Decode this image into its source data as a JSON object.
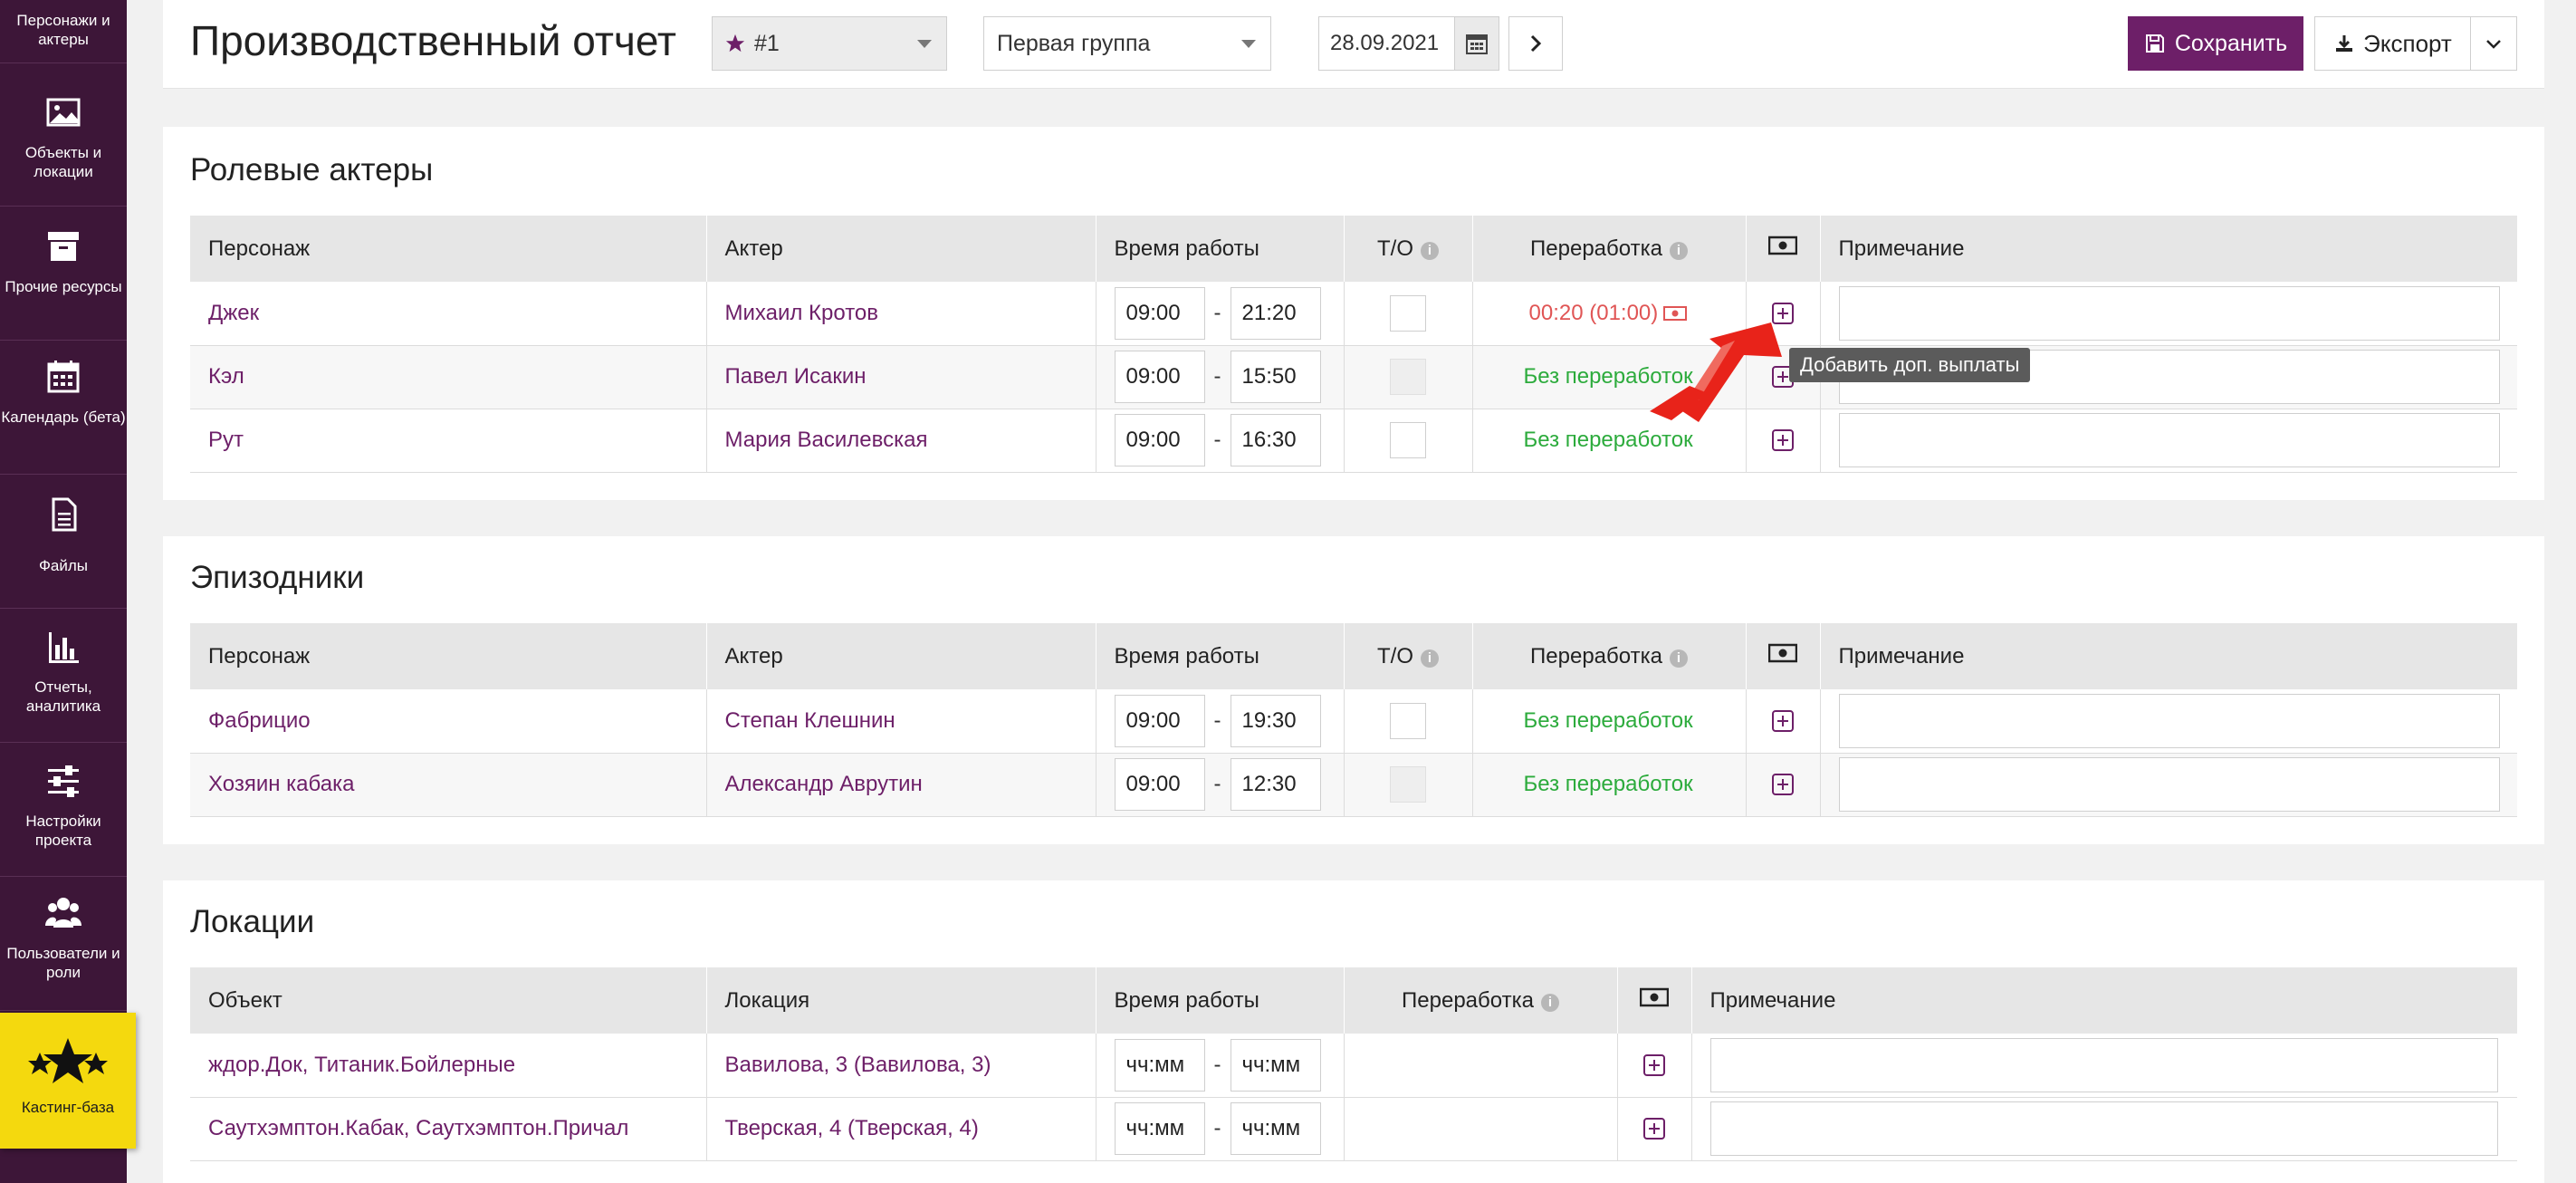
{
  "sidebar": {
    "items": [
      {
        "label": "Персонажи и актеры"
      },
      {
        "label": "Объекты и локации"
      },
      {
        "label": "Прочие ресурсы"
      },
      {
        "label": "Календарь (бета)"
      },
      {
        "label": "Файлы"
      },
      {
        "label": "Отчеты, аналитика"
      },
      {
        "label": "Настройки проекта"
      },
      {
        "label": "Пользователи и роли"
      },
      {
        "label": "Кастинг-база"
      }
    ]
  },
  "header": {
    "title": "Производственный отчет",
    "report_select": "#1",
    "group_select": "Первая группа",
    "date": "28.09.2021",
    "save_label": "Сохранить",
    "export_label": "Экспорт"
  },
  "colors": {
    "brand": "#6d1f68",
    "sidebar": "#3d1638",
    "ok": "#2cab3c",
    "warn": "#e05555",
    "casting": "#f4d90e"
  },
  "roles": {
    "title": "Ролевые актеры",
    "headers": {
      "character": "Персонаж",
      "actor": "Актер",
      "worktime": "Время работы",
      "to": "Т/О",
      "overtime": "Переработка",
      "note": "Примечание"
    },
    "rows": [
      {
        "character": "Джек",
        "actor": "Михаил Кротов",
        "start": "09:00",
        "end": "21:20",
        "overtime": "00:20 (01:00)"
      },
      {
        "character": "Кэл",
        "actor": "Павел Исакин",
        "start": "09:00",
        "end": "15:50",
        "overtime": "Без переработок"
      },
      {
        "character": "Рут",
        "actor": "Мария Василевская",
        "start": "09:00",
        "end": "16:30",
        "overtime": "Без переработок"
      }
    ]
  },
  "episodic": {
    "title": "Эпизодники",
    "headers": {
      "character": "Персонаж",
      "actor": "Актер",
      "worktime": "Время работы",
      "to": "Т/О",
      "overtime": "Переработка",
      "note": "Примечание"
    },
    "rows": [
      {
        "character": "Фабрицио",
        "actor": "Степан Клешнин",
        "start": "09:00",
        "end": "19:30",
        "overtime": "Без переработок"
      },
      {
        "character": "Хозяин кабака",
        "actor": "Александр Аврутин",
        "start": "09:00",
        "end": "12:30",
        "overtime": "Без переработок"
      }
    ]
  },
  "locations": {
    "title": "Локации",
    "headers": {
      "object": "Объект",
      "location": "Локация",
      "worktime": "Время работы",
      "overtime": "Переработка",
      "note": "Примечание"
    },
    "rows": [
      {
        "object": "ждор.Док, Титаник.Бойлерные",
        "location": "Вавилова, 3 (Вавилова, 3)",
        "start": "чч:мм",
        "end": "чч:мм"
      },
      {
        "object": "Саутхэмптон.Кабак, Саутхэмптон.Причал",
        "location": "Тверская, 4 (Тверская, 4)",
        "start": "чч:мм",
        "end": "чч:мм"
      }
    ]
  },
  "tooltip": "Добавить доп. выплаты"
}
